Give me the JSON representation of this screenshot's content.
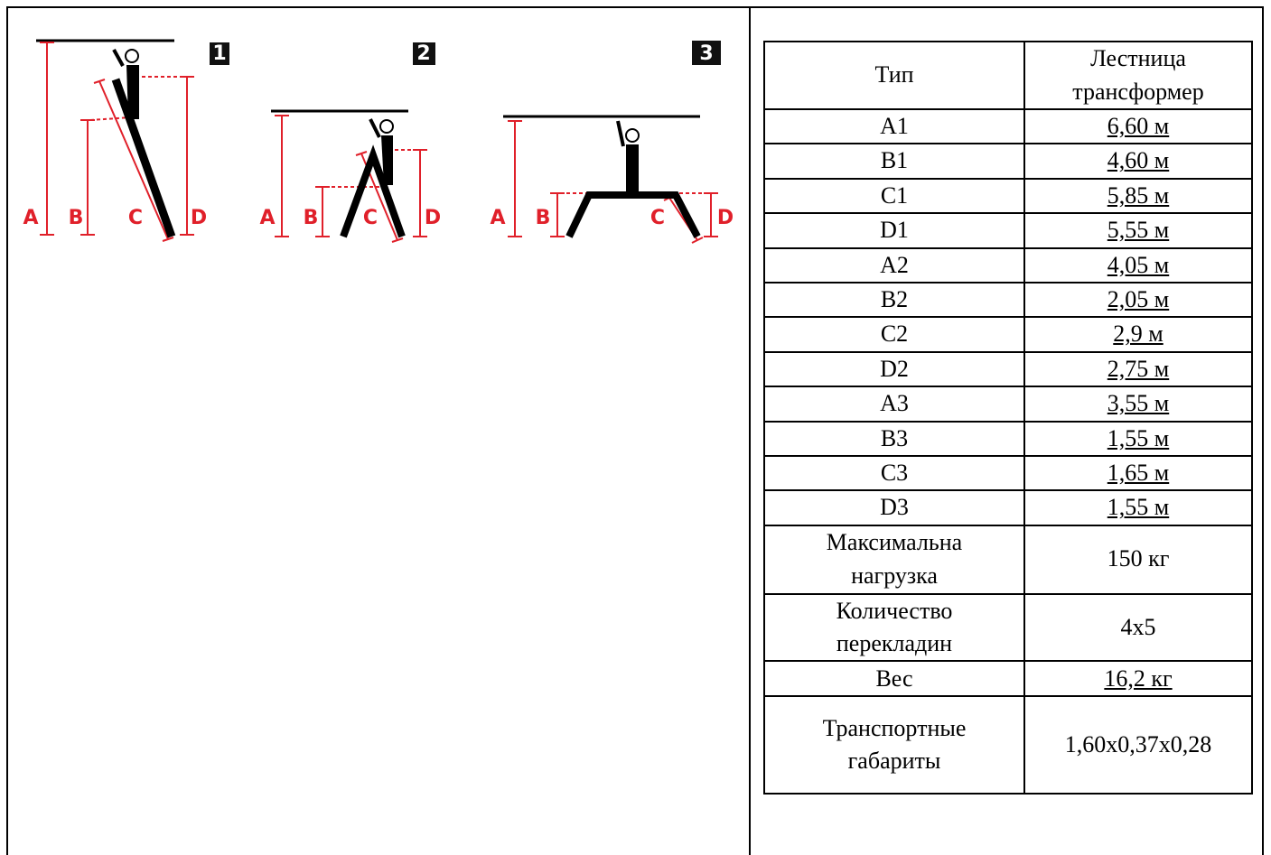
{
  "diagrams": [
    {
      "number": "1",
      "labels": [
        "A",
        "B",
        "C",
        "D"
      ]
    },
    {
      "number": "2",
      "labels": [
        "A",
        "B",
        "C",
        "D"
      ]
    },
    {
      "number": "3",
      "labels": [
        "A",
        "B",
        "C",
        "D"
      ]
    }
  ],
  "table": {
    "header": [
      "Тип",
      "Лестница трансформер"
    ],
    "rows": [
      [
        "A1",
        "6,60 м"
      ],
      [
        "B1",
        "4,60 м"
      ],
      [
        "C1",
        "5,85 м"
      ],
      [
        "D1",
        "5,55 м"
      ],
      [
        "A2",
        "4,05 м"
      ],
      [
        "B2",
        "2,05 м"
      ],
      [
        "C2",
        "2,9 м"
      ],
      [
        "D2",
        "2,75 м"
      ],
      [
        "A3",
        "3,55 м"
      ],
      [
        "B3",
        "1,55 м"
      ],
      [
        "C3",
        "1,65 м"
      ],
      [
        "D3",
        "1,55 м"
      ],
      [
        "Максимальна нагрузка",
        "150 кг"
      ],
      [
        "Количество перекладин",
        "4x5"
      ],
      [
        "Вес",
        "16,2 кг"
      ],
      [
        "Транспортные габариты",
        "1,60x0,37x0,28"
      ]
    ]
  }
}
